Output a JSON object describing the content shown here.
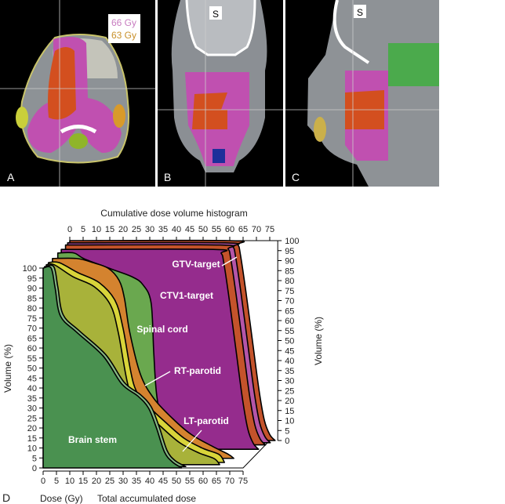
{
  "panels": [
    {
      "letter": "A"
    },
    {
      "letter": "B",
      "orientation_marker": "S"
    },
    {
      "letter": "C",
      "orientation_marker": "S"
    }
  ],
  "legend": {
    "items": [
      {
        "label": "66 Gy",
        "color": "#c87cc0"
      },
      {
        "label": "63 Gy",
        "color": "#c8902a"
      }
    ]
  },
  "chart_data": {
    "type": "area",
    "panel_letter": "D",
    "title": "Cumulative dose volume histogram",
    "xlabel": "Dose (Gy)",
    "xlabel_secondary": "Total accumulated dose",
    "ylabel": "Volume (%)",
    "ylabel_right": "Volume (%)",
    "xlim": [
      0,
      75
    ],
    "ylim": [
      0,
      100
    ],
    "xticks": [
      "0",
      "5",
      "10",
      "15",
      "20",
      "25",
      "30",
      "35",
      "40",
      "45",
      "50",
      "55",
      "60",
      "65",
      "70",
      "75"
    ],
    "yticks": [
      "0",
      "5",
      "10",
      "15",
      "20",
      "25",
      "30",
      "35",
      "40",
      "45",
      "50",
      "55",
      "60",
      "65",
      "70",
      "75",
      "80",
      "85",
      "90",
      "95",
      "100"
    ],
    "grid": false,
    "series": [
      {
        "name": "GTV-target",
        "color": "#c4532b",
        "x": [
          0,
          60,
          63,
          64,
          66,
          68.5,
          71,
          73,
          75,
          77
        ],
        "y": [
          100,
          100,
          98,
          93,
          75,
          50,
          25,
          10,
          3,
          0
        ]
      },
      {
        "color": "#b455a8",
        "x": [
          0,
          59,
          62,
          63,
          65,
          67.5,
          70,
          72,
          74,
          76
        ],
        "y": [
          100,
          100,
          98,
          93,
          75,
          50,
          25,
          10,
          3,
          0
        ]
      },
      {
        "color": "#c4532b",
        "x": [
          0,
          58,
          61,
          62,
          64,
          66.5,
          69,
          71,
          73,
          75
        ],
        "y": [
          100,
          100,
          98,
          93,
          75,
          50,
          25,
          10,
          3,
          0
        ]
      },
      {
        "name": "CTV1-target",
        "color": "#952c8d",
        "x": [
          0,
          57,
          60,
          61,
          63,
          65.5,
          68,
          70,
          72,
          74
        ],
        "y": [
          100,
          100,
          98,
          93,
          75,
          50,
          25,
          10,
          3,
          0
        ]
      },
      {
        "name": "Spinal cord",
        "color": "#6aa84f",
        "x": [
          0,
          6,
          10,
          20,
          28,
          32,
          35,
          36,
          37,
          39,
          42,
          45
        ],
        "y": [
          100,
          100,
          97,
          92,
          88,
          84,
          75,
          50,
          30,
          15,
          3,
          0
        ]
      },
      {
        "name": "RT-parotid",
        "color": "#d4832f",
        "x": [
          0,
          9,
          15,
          21,
          25,
          27,
          29,
          33,
          38,
          45,
          52,
          60,
          66,
          68
        ],
        "y": [
          100,
          100,
          98,
          95,
          89,
          80,
          63,
          42,
          30,
          20,
          12,
          6,
          2,
          0
        ]
      },
      {
        "name": "LT-parotid",
        "color": "#d8d43a",
        "x": [
          0,
          4,
          11,
          19,
          25,
          28,
          32,
          37,
          44,
          51,
          58,
          64,
          66
        ],
        "y": [
          100,
          100,
          95,
          90,
          81,
          67,
          39,
          29,
          20,
          12,
          7,
          4,
          0
        ]
      },
      {
        "color": "#a8b23a",
        "x": [
          0,
          3,
          10,
          18,
          24,
          27,
          31,
          36,
          43,
          50,
          57,
          63,
          65
        ],
        "y": [
          100,
          100,
          94,
          89,
          80,
          66,
          38,
          28,
          19,
          11,
          6,
          3,
          0
        ]
      },
      {
        "color": "#86b884",
        "x": [
          0,
          3.5,
          5,
          7,
          13,
          23,
          30,
          36,
          40,
          43,
          46,
          49,
          53
        ],
        "y": [
          100,
          100,
          90,
          76,
          68,
          56,
          42,
          36,
          30,
          20,
          8,
          3,
          0
        ]
      },
      {
        "name": "Brain stem",
        "color": "#4a9150",
        "x": [
          0,
          3,
          4.5,
          6.5,
          12.5,
          22.5,
          29.5,
          35.5,
          39.5,
          42.5,
          45.5,
          48.5,
          52
        ],
        "y": [
          100,
          100,
          90,
          76,
          68,
          56,
          42,
          36,
          30,
          20,
          8,
          3,
          0
        ]
      }
    ]
  }
}
